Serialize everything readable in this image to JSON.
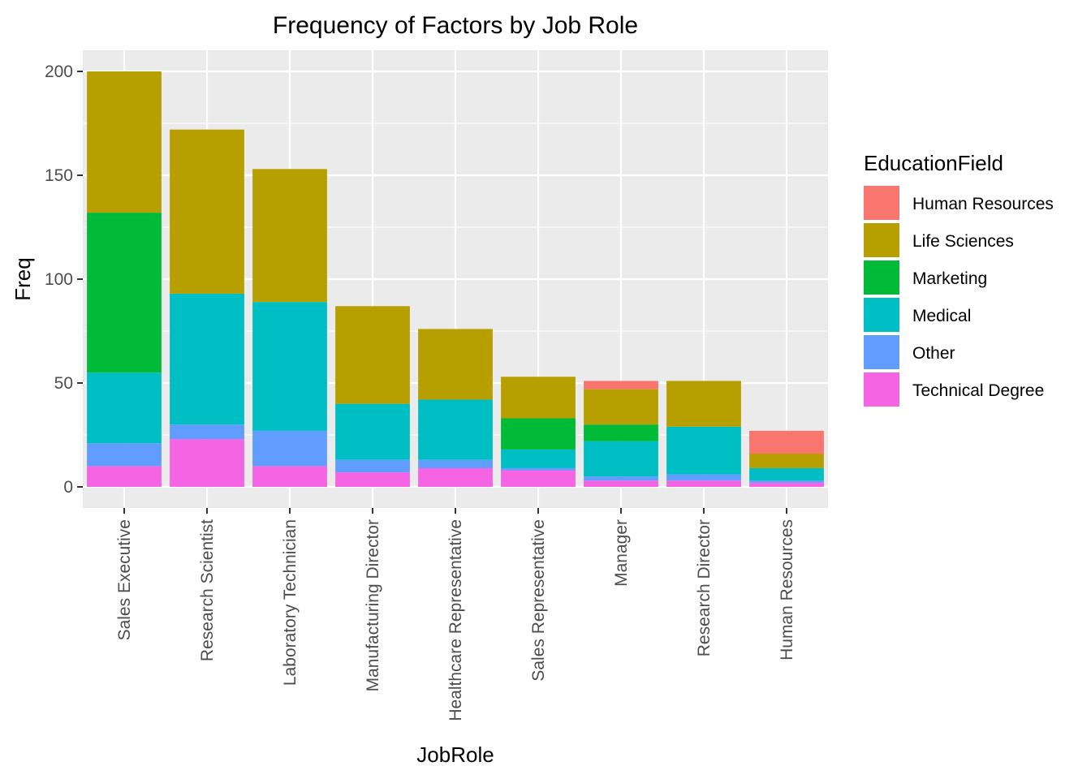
{
  "chart_data": {
    "type": "bar",
    "stacked": true,
    "title": "Frequency of Factors by Job Role",
    "xlabel": "JobRole",
    "ylabel": "Freq",
    "ylim": [
      0,
      210
    ],
    "yticks": [
      0,
      50,
      100,
      150,
      200
    ],
    "grid": true,
    "legend": {
      "title": "EducationField",
      "position": "right"
    },
    "categories": [
      "Sales Executive",
      "Research Scientist",
      "Laboratory Technician",
      "Manufacturing Director",
      "Healthcare Representative",
      "Sales Representative",
      "Manager",
      "Research Director",
      "Human Resources"
    ],
    "series": [
      {
        "name": "Human Resources",
        "color": "#F8766D",
        "values": [
          0,
          0,
          0,
          0,
          0,
          0,
          4,
          0,
          11
        ]
      },
      {
        "name": "Life Sciences",
        "color": "#B79F00",
        "values": [
          68,
          79,
          64,
          47,
          34,
          20,
          17,
          22,
          7
        ]
      },
      {
        "name": "Marketing",
        "color": "#00BA38",
        "values": [
          77,
          0,
          0,
          0,
          0,
          15,
          8,
          0,
          0
        ]
      },
      {
        "name": "Medical",
        "color": "#00BFC4",
        "values": [
          34,
          63,
          62,
          27,
          29,
          9,
          17,
          23,
          6
        ]
      },
      {
        "name": "Other",
        "color": "#619CFF",
        "values": [
          11,
          7,
          17,
          6,
          4,
          1,
          2,
          3,
          1
        ]
      },
      {
        "name": "Technical Degree",
        "color": "#F564E3",
        "values": [
          10,
          23,
          10,
          7,
          9,
          8,
          3,
          3,
          2
        ]
      }
    ]
  }
}
